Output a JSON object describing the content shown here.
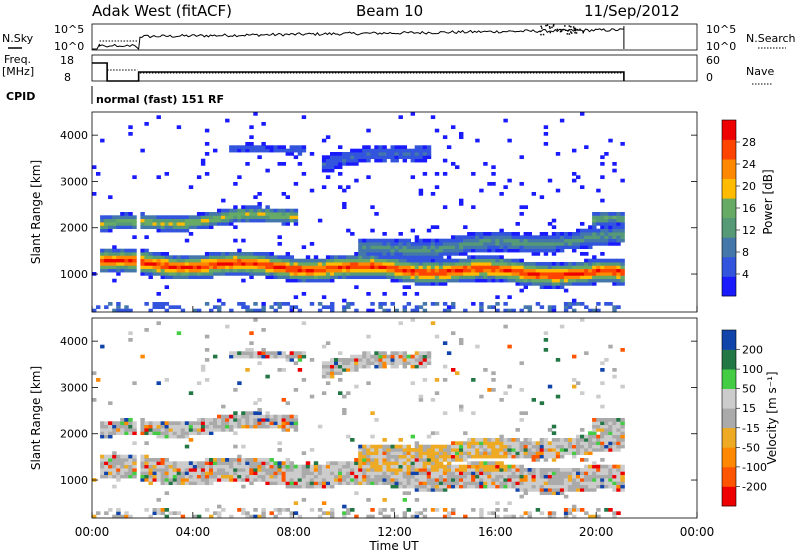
{
  "header": {
    "station": "Adak West (fitACF)",
    "beam": "Beam 10",
    "date": "11/Sep/2012"
  },
  "summary": {
    "nsky_label": "N.Sky",
    "nsky_ticks": [
      "10^5",
      "10^0"
    ],
    "nsearch_label": "N.Search",
    "nsearch_ticks": [
      "10^5",
      "10^0"
    ],
    "freq_label_1": "Freq.",
    "freq_label_2": "[MHz]",
    "freq_ticks": [
      "18",
      "8"
    ],
    "nave_label": "Nave",
    "nave_ticks": [
      "60",
      "0"
    ],
    "cpid_label": "CPID",
    "cpid_text": "normal (fast) 151 RF"
  },
  "colors": {
    "power": [
      "#1a1aff",
      "#3355dd",
      "#4477aa",
      "#559977",
      "#66aa66",
      "#ffbb00",
      "#ff8800",
      "#ff4400",
      "#ee0000"
    ],
    "velocity": [
      "#ee0000",
      "#ff5500",
      "#ff8800",
      "#eeaa22",
      "#aaaaaa",
      "#cccccc",
      "#44cc44",
      "#227744",
      "#1144aa"
    ]
  },
  "chart_data": [
    {
      "type": "heatmap",
      "name": "power-panel",
      "ylabel": "Slant Range [km]",
      "yticks": [
        "1000",
        "2000",
        "3000",
        "4000"
      ],
      "ylim": [
        180,
        4500
      ],
      "colorbar_label": "Power [dB]",
      "colorbar_ticks": [
        "4",
        "8",
        "12",
        "16",
        "20",
        "24",
        "28"
      ],
      "data_end_hour": 21.1
    },
    {
      "type": "heatmap",
      "name": "velocity-panel",
      "ylabel": "Slant Range [km]",
      "yticks": [
        "1000",
        "2000",
        "3000",
        "4000"
      ],
      "ylim": [
        180,
        4500
      ],
      "colorbar_label": "Velocity [m s⁻¹]",
      "colorbar_ticks": [
        "-200",
        "-100",
        "-50",
        "-15",
        "15",
        "50",
        "100",
        "200"
      ],
      "xlabel": "Time UT",
      "xticks": [
        "00:00",
        "04:00",
        "08:00",
        "12:00",
        "16:00",
        "20:00",
        "00:00"
      ],
      "xlim": [
        0,
        24
      ],
      "data_end_hour": 21.1
    }
  ]
}
